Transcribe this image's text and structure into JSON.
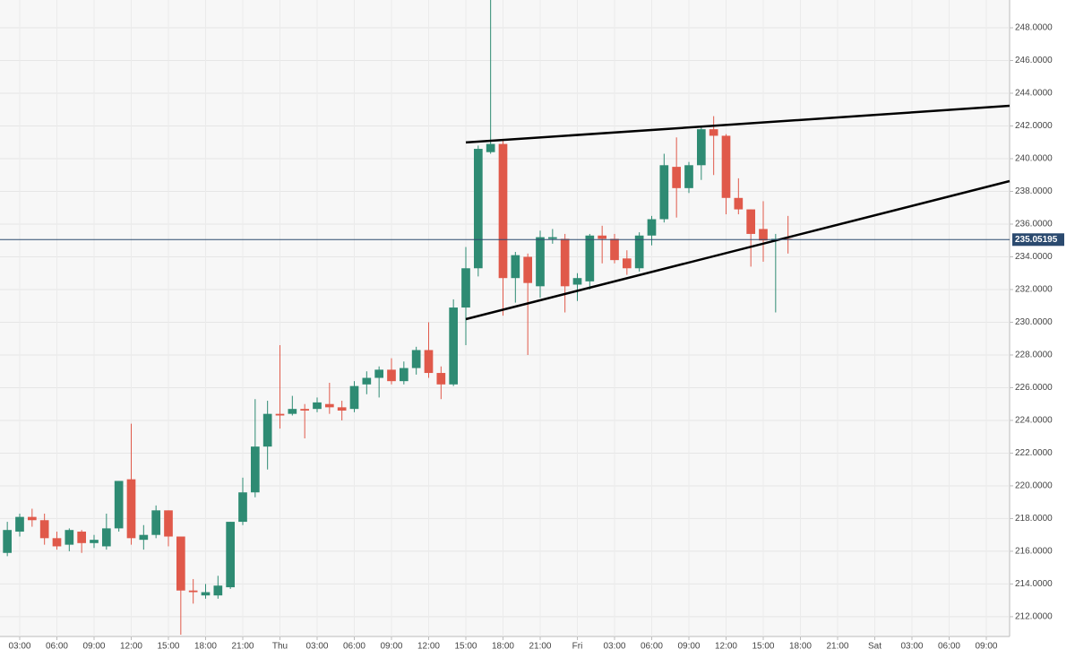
{
  "chart_data": {
    "type": "candlestick",
    "x": [
      2,
      3,
      4,
      5,
      6,
      7,
      8,
      9,
      10,
      11,
      12,
      13,
      14,
      15,
      16,
      17,
      18,
      19,
      20,
      21,
      22,
      23,
      24,
      25,
      26,
      27,
      28,
      29,
      30,
      31,
      32,
      33,
      34,
      35,
      36,
      37,
      38,
      39,
      40,
      41,
      42,
      43,
      44,
      45,
      46,
      47,
      48,
      49,
      50,
      51,
      52,
      53,
      54,
      55,
      56,
      57,
      58,
      59,
      60,
      61,
      62,
      63,
      64,
      65
    ],
    "open": [
      215.9,
      217.2,
      218.1,
      217.9,
      216.8,
      216.4,
      217.2,
      216.5,
      216.3,
      217.4,
      220.4,
      216.7,
      217.0,
      218.5,
      216.9,
      213.6,
      213.3,
      213.3,
      213.8,
      217.8,
      219.6,
      222.4,
      224.4,
      224.4,
      224.7,
      224.7,
      225.0,
      224.8,
      224.7,
      226.2,
      226.6,
      227.1,
      226.4,
      227.2,
      228.3,
      226.9,
      226.2,
      230.9,
      233.3,
      240.4,
      240.9,
      232.7,
      234.0,
      232.2,
      235.1,
      235.1,
      232.3,
      232.5,
      235.3,
      235.1,
      233.9,
      233.3,
      235.3,
      236.3,
      239.5,
      238.2,
      239.6,
      241.8,
      241.4,
      237.6,
      236.9,
      235.7,
      235.0,
      235.1
    ],
    "high": [
      217.8,
      218.3,
      218.6,
      218.3,
      217.2,
      217.4,
      217.3,
      217.0,
      218.3,
      220.3,
      223.8,
      217.6,
      218.8,
      218.5,
      216.9,
      214.3,
      214.0,
      214.5,
      217.8,
      220.5,
      225.3,
      225.2,
      228.6,
      225.5,
      225.0,
      225.4,
      226.3,
      225.2,
      226.4,
      227.0,
      227.3,
      227.8,
      227.6,
      228.5,
      230.0,
      227.3,
      231.4,
      234.6,
      240.8,
      250.5,
      241.1,
      234.3,
      234.2,
      235.6,
      235.7,
      235.4,
      233.0,
      235.4,
      235.9,
      235.4,
      234.4,
      235.5,
      236.5,
      240.3,
      241.3,
      239.8,
      242.0,
      242.6,
      241.5,
      238.8,
      236.9,
      237.4,
      235.4,
      236.5
    ],
    "low": [
      215.7,
      216.9,
      217.5,
      216.4,
      216.1,
      216.0,
      215.9,
      216.2,
      216.1,
      217.2,
      216.4,
      216.1,
      216.8,
      216.3,
      210.9,
      212.8,
      213.1,
      213.1,
      213.7,
      217.6,
      219.3,
      221.0,
      223.5,
      224.3,
      222.9,
      224.5,
      224.4,
      224.0,
      224.5,
      225.6,
      225.4,
      226.2,
      226.2,
      226.8,
      226.6,
      225.3,
      226.1,
      228.6,
      232.8,
      240.3,
      230.4,
      231.2,
      228.0,
      231.5,
      234.8,
      230.6,
      231.3,
      232.0,
      233.6,
      233.6,
      232.9,
      233.1,
      234.7,
      236.1,
      236.4,
      237.9,
      238.7,
      239.0,
      236.6,
      236.6,
      233.4,
      233.7,
      230.6,
      234.2
    ],
    "close": [
      217.3,
      218.1,
      217.9,
      216.8,
      216.3,
      217.3,
      216.5,
      216.7,
      217.4,
      220.3,
      216.8,
      217.0,
      218.5,
      216.9,
      213.6,
      213.5,
      213.5,
      213.9,
      217.8,
      219.6,
      222.4,
      224.4,
      224.3,
      224.7,
      224.6,
      225.1,
      224.8,
      224.6,
      226.1,
      226.6,
      227.1,
      226.4,
      227.2,
      228.3,
      226.9,
      226.2,
      230.9,
      233.3,
      240.6,
      240.9,
      232.7,
      234.1,
      232.4,
      235.2,
      235.2,
      232.2,
      232.7,
      235.3,
      235.1,
      233.8,
      233.3,
      235.3,
      236.3,
      239.6,
      238.2,
      239.6,
      241.8,
      241.4,
      237.6,
      236.9,
      235.4,
      235.0,
      235.1,
      235.05
    ],
    "up_color": "#2e8b73",
    "down_color": "#e0594a",
    "last_price": {
      "value": 235.05195,
      "label": "235.05195"
    },
    "trendlines": [
      {
        "x": [
          39.0,
          82.88
        ],
        "y": [
          240.99,
          243.23
        ]
      },
      {
        "x": [
          39.0,
          82.88
        ],
        "y": [
          230.19,
          238.63
        ]
      }
    ],
    "xlim": [
      1.41,
      82.88
    ],
    "ylim": [
      210.79,
      249.7
    ],
    "yticks": [
      {
        "value": 212,
        "label": "212.0000"
      },
      {
        "value": 214,
        "label": "214.0000"
      },
      {
        "value": 216,
        "label": "216.0000"
      },
      {
        "value": 218,
        "label": "218.0000"
      },
      {
        "value": 220,
        "label": "220.0000"
      },
      {
        "value": 222,
        "label": "222.0000"
      },
      {
        "value": 224,
        "label": "224.0000"
      },
      {
        "value": 226,
        "label": "226.0000"
      },
      {
        "value": 228,
        "label": "228.0000"
      },
      {
        "value": 230,
        "label": "230.0000"
      },
      {
        "value": 232,
        "label": "232.0000"
      },
      {
        "value": 234,
        "label": "234.0000"
      },
      {
        "value": 236,
        "label": "236.0000"
      },
      {
        "value": 238,
        "label": "238.0000"
      },
      {
        "value": 240,
        "label": "240.0000"
      },
      {
        "value": 242,
        "label": "242.0000"
      },
      {
        "value": 244,
        "label": "244.0000"
      },
      {
        "value": 246,
        "label": "246.0000"
      },
      {
        "value": 248,
        "label": "248.0000"
      }
    ],
    "xticks": [
      {
        "value": 3,
        "label": "03:00"
      },
      {
        "value": 6,
        "label": "06:00"
      },
      {
        "value": 9,
        "label": "09:00"
      },
      {
        "value": 12,
        "label": "12:00"
      },
      {
        "value": 15,
        "label": "15:00"
      },
      {
        "value": 18,
        "label": "18:00"
      },
      {
        "value": 21,
        "label": "21:00"
      },
      {
        "value": 24,
        "label": "Thu"
      },
      {
        "value": 27,
        "label": "03:00"
      },
      {
        "value": 30,
        "label": "06:00"
      },
      {
        "value": 33,
        "label": "09:00"
      },
      {
        "value": 36,
        "label": "12:00"
      },
      {
        "value": 39,
        "label": "15:00"
      },
      {
        "value": 42,
        "label": "18:00"
      },
      {
        "value": 45,
        "label": "21:00"
      },
      {
        "value": 48,
        "label": "Fri"
      },
      {
        "value": 51,
        "label": "03:00"
      },
      {
        "value": 54,
        "label": "06:00"
      },
      {
        "value": 57,
        "label": "09:00"
      },
      {
        "value": 60,
        "label": "12:00"
      },
      {
        "value": 63,
        "label": "15:00"
      },
      {
        "value": 66,
        "label": "18:00"
      },
      {
        "value": 69,
        "label": "21:00"
      },
      {
        "value": 72,
        "label": "Sat"
      },
      {
        "value": 75,
        "label": "03:00"
      },
      {
        "value": 78,
        "label": "06:00"
      },
      {
        "value": 81,
        "label": "09:00"
      }
    ],
    "grid": true
  }
}
